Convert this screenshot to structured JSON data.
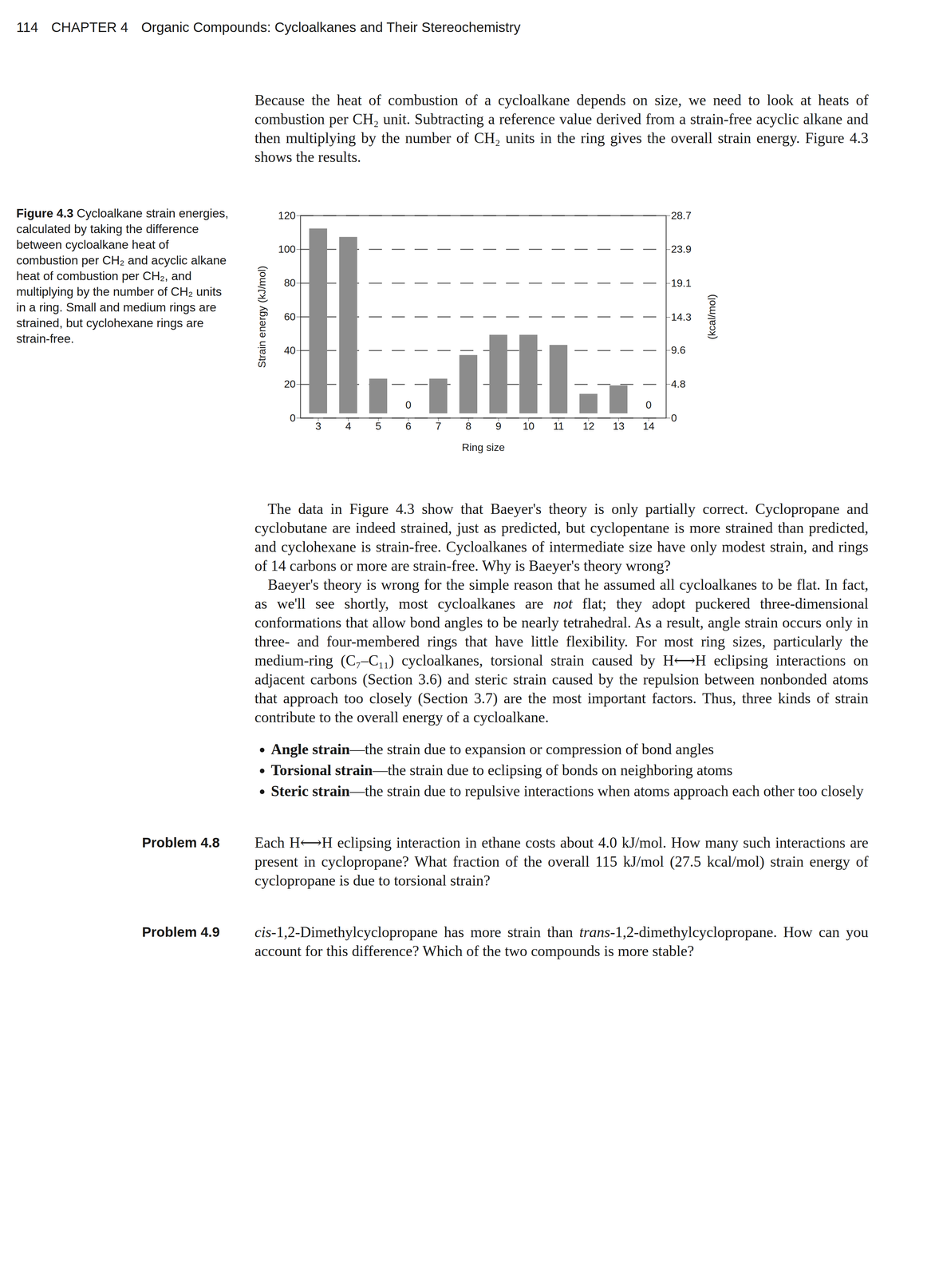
{
  "header": {
    "page_number": "114",
    "chapter": "CHAPTER 4",
    "title": "Organic Compounds: Cycloalkanes and Their Stereochemistry"
  },
  "intro_paragraph": [
    "Because the heat of combustion of a cycloalkane depends on size, we need to look at heats of combustion per CH₂ unit. Subtracting a reference value derived from a strain-free acyclic alkane and then multiplying by the number of CH₂ units in the ring gives the overall strain energy. Figure 4.3 shows the results."
  ],
  "figure": {
    "caption_label": "Figure 4.3",
    "caption": " Cycloalkane strain energies, calculated by taking the difference between cycloalkane heat of combustion per CH₂ and acyclic alkane heat of combustion per CH₂, and multiplying by the number of CH₂ units in a ring. Small and medium rings are strained, but cyclohexane rings are strain-free."
  },
  "chart_data": {
    "type": "bar",
    "x_label": "Ring size",
    "y_label": "Strain energy (kJ/mol)",
    "y2_label": "(kcal/mol)",
    "categories": [
      3,
      4,
      5,
      6,
      7,
      8,
      9,
      10,
      11,
      12,
      13,
      14
    ],
    "values": [
      115,
      110,
      26,
      0,
      26,
      40,
      52,
      52,
      46,
      17,
      22,
      0
    ],
    "value_labels": [
      null,
      null,
      null,
      "0",
      null,
      null,
      null,
      null,
      null,
      null,
      null,
      "0"
    ],
    "color": "#8c8c8c",
    "ylim": [
      0,
      120
    ],
    "yticks": [
      0,
      20,
      40,
      60,
      80,
      100,
      120
    ],
    "y2lim": [
      0,
      28.7
    ],
    "y2ticks": [
      0,
      4.8,
      9.6,
      14.3,
      19.1,
      23.9,
      28.7
    ],
    "grid": true
  },
  "paragraphs": [
    [
      "The data in Figure 4.3 show that Baeyer's theory is only partially correct. Cyclopropane and cyclobutane are indeed strained, just as predicted, but cyclopentane is more strained than predicted, and cyclohexane is strain-free. Cycloalkanes of intermediate size have only modest strain, and rings of 14 carbons or more are strain-free. Why is Baeyer's theory wrong?"
    ],
    [
      "Baeyer's theory is wrong for the simple reason that he assumed all cycloalkanes to be flat. In fact, as we'll see shortly, most cycloalkanes are ",
      {
        "i": "not"
      },
      " flat; they adopt puckered three-dimensional conformations that allow bond angles to be nearly tetrahedral. As a result, angle strain occurs only in three- and four-membered rings that have little flexibility. For most ring sizes, particularly the medium-ring (C₇–C₁₁) cycloalkanes, torsional strain caused by H⟷H eclipsing interactions on adjacent carbons (Section 3.6) and steric strain caused by the repulsion between nonbonded atoms that approach too closely (Section 3.7) are the most important factors. Thus, three kinds of strain contribute to the overall energy of a cycloalkane."
    ]
  ],
  "bullets": [
    {
      "term": "Angle strain",
      "definition": "—the strain due to expansion or compression of bond angles"
    },
    {
      "term": "Torsional strain",
      "definition": "—the strain due to eclipsing of bonds on neighboring atoms"
    },
    {
      "term": "Steric strain",
      "definition": "—the strain due to repulsive interactions when atoms approach each other too closely"
    }
  ],
  "problems": [
    {
      "label": "Problem 4.8",
      "text": [
        "Each H⟷H eclipsing interaction in ethane costs about 4.0 kJ/mol. How many such interactions are present in cyclopropane? What fraction of the overall 115 kJ/mol (27.5 kcal/mol) strain energy of cyclopropane is due to torsional strain?"
      ]
    },
    {
      "label": "Problem 4.9",
      "text": [
        {
          "i": "cis"
        },
        "-1,2-Dimethylcyclopropane has more strain than ",
        {
          "i": "trans"
        },
        "-1,2-dimethylcyclopropane. How can you account for this difference? Which of the two compounds is more stable?"
      ]
    }
  ]
}
